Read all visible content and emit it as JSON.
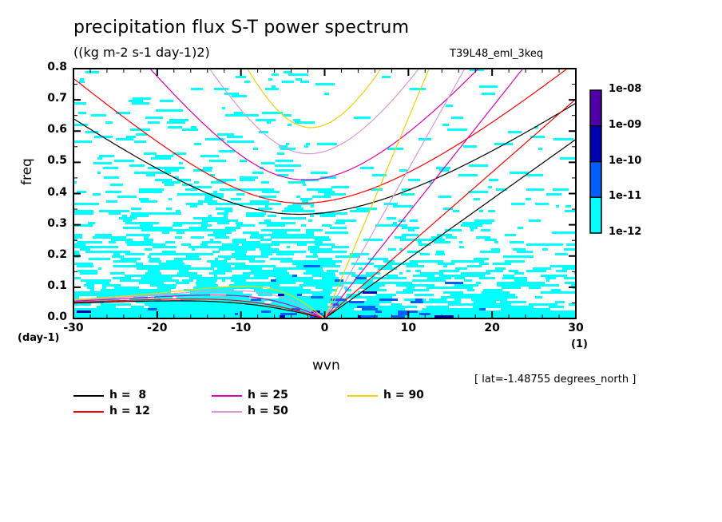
{
  "chart_data": {
    "type": "heatmap",
    "title": "precipitation flux S-T power spectrum",
    "subtitle": "((kg m-2 s-1 day-1)2)",
    "run_label": "T39L48_eml_3keq",
    "annotation": "[ lat=-1.48755 degrees_north ]",
    "xlabel": "wvn",
    "ylabel": "freq",
    "x_unit": "(1)",
    "y_unit": "(day-1)",
    "xlim": [
      -30,
      30
    ],
    "ylim": [
      0.0,
      0.8
    ],
    "x_ticks": [
      "-30",
      "-20",
      "-10",
      "0",
      "10",
      "20",
      "30"
    ],
    "x_tick_values": [
      -30,
      -20,
      -10,
      0,
      10,
      20,
      30
    ],
    "y_ticks": [
      "0.0",
      "0.1",
      "0.2",
      "0.3",
      "0.4",
      "0.5",
      "0.6",
      "0.7",
      "0.8"
    ],
    "y_tick_values": [
      0.0,
      0.1,
      0.2,
      0.3,
      0.4,
      0.5,
      0.6,
      0.7,
      0.8
    ],
    "colorbar": {
      "levels": [
        "1e-12",
        "1e-11",
        "1e-10",
        "1e-09",
        "1e-08"
      ],
      "colors": [
        "#00ffff",
        "#0060ff",
        "#0000b0",
        "#5000a8"
      ]
    },
    "dispersion_curves": [
      {
        "label": "h =  8",
        "h": 8,
        "color": "#000000"
      },
      {
        "label": "h = 12",
        "h": 12,
        "color": "#ff0000"
      },
      {
        "label": "h = 25",
        "h": 25,
        "color": "#e000b0"
      },
      {
        "label": "h = 50",
        "h": 50,
        "color": "#d898d8"
      },
      {
        "label": "h = 90",
        "h": 90,
        "color": "#f0d000"
      }
    ],
    "field_description_levels": {
      "background_below_1e-12": "#ffffff"
    }
  }
}
